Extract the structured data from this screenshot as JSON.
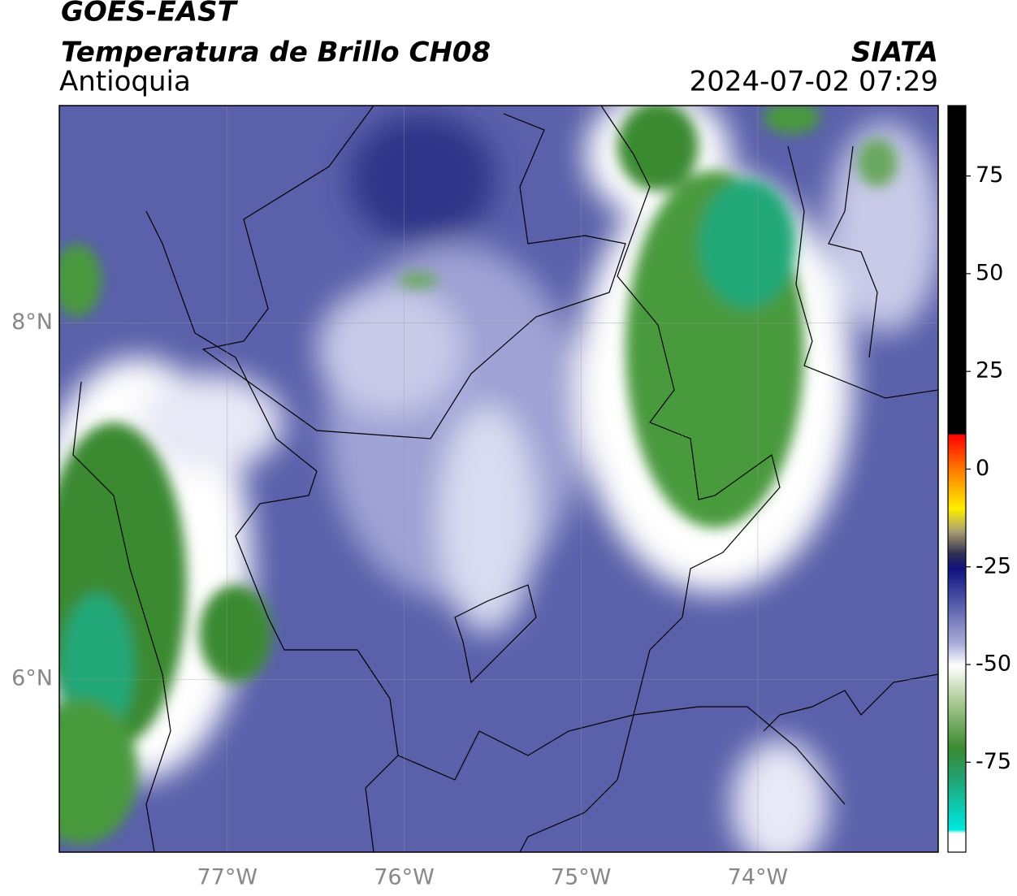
{
  "header": {
    "title": "GOES-EAST",
    "subtitle": "Temperatura de Brillo CH08",
    "region": "Antioquia",
    "source": "SIATA",
    "datetime": "2024-07-02 07:29"
  },
  "map": {
    "xlim": [
      -77.95,
      -72.98
    ],
    "ylim": [
      5.03,
      9.22
    ],
    "xticks": [
      {
        "value": -77,
        "label": "77°W"
      },
      {
        "value": -76,
        "label": "76°W"
      },
      {
        "value": -75,
        "label": "75°W"
      },
      {
        "value": -74,
        "label": "74°W"
      }
    ],
    "yticks": [
      {
        "value": 6,
        "label": "6°N"
      },
      {
        "value": 8,
        "label": "8°N"
      }
    ],
    "grid": true,
    "colorbar": {
      "lim": [
        -98,
        93
      ],
      "ticks": [
        -75,
        -50,
        -25,
        0,
        25,
        50,
        75
      ]
    }
  }
}
